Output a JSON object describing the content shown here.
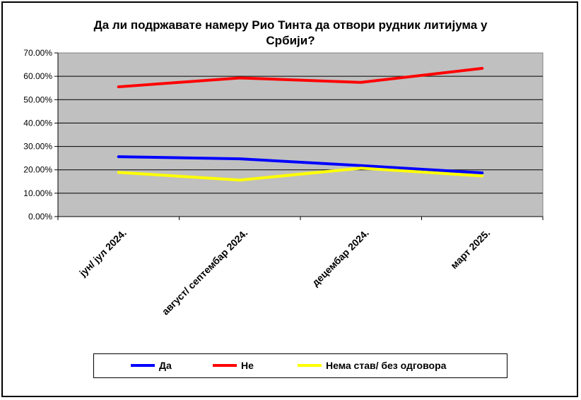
{
  "chart_data": {
    "type": "line",
    "title": "Да ли подржавате намеру  Рио Тинта да отвори рудник литијума у Србији?",
    "title_lines": [
      "Да ли подржавате намеру  Рио Тинта да отвори рудник литијума у",
      "Србији?"
    ],
    "categories": [
      "јун/ јул 2024.",
      "август/ септембар 2024.",
      "децембар 2024.",
      "март 2025."
    ],
    "series": [
      {
        "name": "Да",
        "color": "#0000ff",
        "values": [
          0.256,
          0.247,
          0.218,
          0.187
        ]
      },
      {
        "name": "Не",
        "color": "#ff0000",
        "values": [
          0.555,
          0.593,
          0.574,
          0.634
        ]
      },
      {
        "name": "Нема став/ без одговора",
        "color": "#ffff00",
        "values": [
          0.189,
          0.156,
          0.207,
          0.174
        ]
      }
    ],
    "y_ticks": [
      "0.00%",
      "10.00%",
      "20.00%",
      "30.00%",
      "40.00%",
      "50.00%",
      "60.00%",
      "70.00%"
    ],
    "ylim": [
      0,
      0.7
    ],
    "grid": true,
    "legend_position": "bottom",
    "plot_background": "#c0c0c0"
  }
}
